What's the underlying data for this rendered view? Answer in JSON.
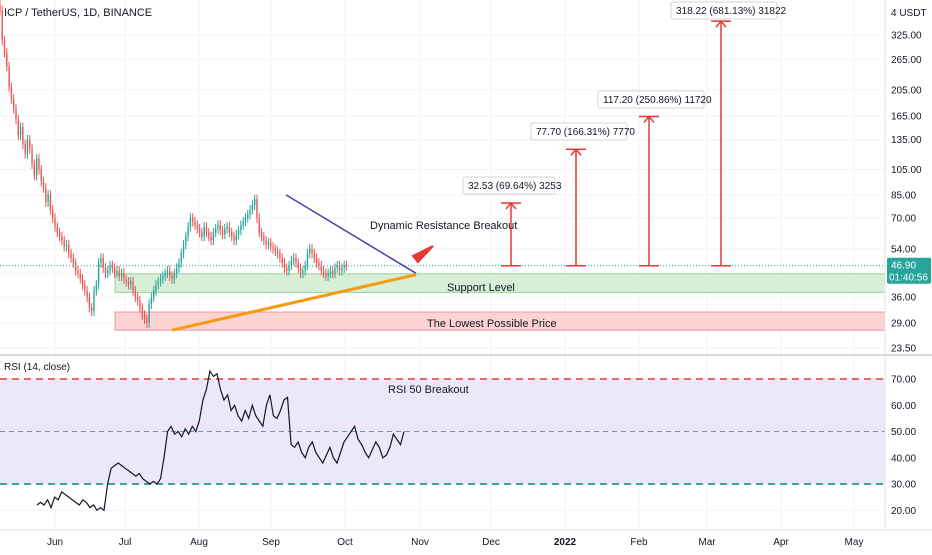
{
  "header": {
    "symbol_title": "ICP / TetherUS, 1D, BINANCE",
    "currency": "4 USDT",
    "rsi_title": "RSI (14, close)"
  },
  "price_badge": {
    "value": "46.90",
    "countdown": "01:40:56"
  },
  "colors": {
    "candle_up": "#26a69a",
    "candle_down": "#ef5350",
    "support_fill": "#d6efd6",
    "lowest_fill": "#fbd3d3",
    "resistance_line": "#4a3fae",
    "support_trend": "#f39c12",
    "target_line": "#e53935",
    "rsi_line": "#131722",
    "rsi_band": "#ede7fb",
    "arrow": "#e53935",
    "badge": "#26a69a"
  },
  "chart_data": [
    {
      "type": "candlestick",
      "title": "ICP / TetherUS, 1D, BINANCE",
      "y_scale": "log",
      "yticks": [
        "325.00",
        "265.00",
        "205.00",
        "165.00",
        "135.00",
        "105.00",
        "85.00",
        "70.00",
        "54.00",
        "44.00",
        "36.00",
        "29.00",
        "23.50"
      ],
      "xticks": [
        "Jun",
        "Jul",
        "Aug",
        "Sep",
        "Oct",
        "Nov",
        "Dec",
        "2022",
        "Feb",
        "Mar",
        "Apr",
        "May"
      ],
      "zones": [
        {
          "label": "Support Level",
          "low": 37.5,
          "high": 43.8
        },
        {
          "label": "The Lowest Possible Price",
          "low": 27.3,
          "high": 31.8
        }
      ],
      "trendlines": [
        {
          "name": "dynamic-resistance",
          "from": [
            "Sep 3",
            85
          ],
          "to": [
            "Oct 27",
            44
          ]
        },
        {
          "name": "rising-support",
          "from": [
            "Jul 20",
            27.3
          ],
          "to": [
            "Oct 27",
            43.5
          ]
        }
      ],
      "annotations": [
        {
          "text": "Dynamic Resistance Breakout"
        },
        {
          "text": "Support Level"
        },
        {
          "text": "The Lowest Possible Price"
        }
      ],
      "targets": [
        {
          "label": "32.53 (69.64%) 3253",
          "from": 46.9,
          "to": 79.4
        },
        {
          "label": "77.70 (166.31%) 7770",
          "from": 46.9,
          "to": 124.6
        },
        {
          "label": "117.20 (250.86%) 11720",
          "from": 46.9,
          "to": 164.1
        },
        {
          "label": "318.22 (681.13%) 31822",
          "from": 46.9,
          "to": 365.1
        }
      ],
      "last_price": 46.9
    },
    {
      "type": "line",
      "title": "RSI (14, close)",
      "yticks": [
        "70.00",
        "60.00",
        "50.00",
        "40.00",
        "30.00",
        "20.00"
      ],
      "levels": [
        70,
        50,
        30
      ],
      "annotation": "RSI 50 Breakout"
    }
  ]
}
